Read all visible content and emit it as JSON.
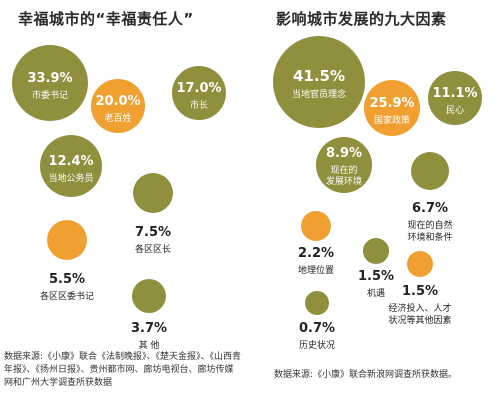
{
  "chart_data": [
    {
      "type": "bubble",
      "title": "幸福城市的“幸福责任人”",
      "items": [
        {
          "label": "市委书记",
          "value": 33.9,
          "pct": "33.9%",
          "color": "#8f8f3d"
        },
        {
          "label": "老百姓",
          "value": 20.0,
          "pct": "20.0%",
          "color": "#f0a031"
        },
        {
          "label": "市长",
          "value": 17.0,
          "pct": "17.0%",
          "color": "#8f8f3d"
        },
        {
          "label": "当地公务员",
          "value": 12.4,
          "pct": "12.4%",
          "color": "#8f8f3d"
        },
        {
          "label": "各区区长",
          "value": 7.5,
          "pct": "7.5%",
          "color": "#8f8f3d"
        },
        {
          "label": "各区区委书记",
          "value": 5.5,
          "pct": "5.5%",
          "color": "#f0a031"
        },
        {
          "label": "其  他",
          "value": 3.7,
          "pct": "3.7%",
          "color": "#8f8f3d"
        }
      ],
      "source": "数据来源:《小康》联合《法制晚报》、《楚天金报》、《山西青年报》、《扬州日报》、贵州都市网、廊坊电视台、廊坊传媒网和广州大学调查所获数据"
    },
    {
      "type": "bubble",
      "title": "影响城市发展的九大因素",
      "items": [
        {
          "label": "当地官员理念",
          "value": 41.5,
          "pct": "41.5%",
          "color": "#8f8f3d"
        },
        {
          "label": "国家政策",
          "value": 25.9,
          "pct": "25.9%",
          "color": "#f0a031"
        },
        {
          "label": "民心",
          "value": 11.1,
          "pct": "11.1%",
          "color": "#8f8f3d"
        },
        {
          "label": "现在的发展环境",
          "value": 8.9,
          "pct": "8.9%",
          "color": "#8f8f3d"
        },
        {
          "label": "现在的自然环境和条件",
          "value": 6.7,
          "pct": "6.7%",
          "color": "#8f8f3d"
        },
        {
          "label": "地理位置",
          "value": 2.2,
          "pct": "2.2%",
          "color": "#f0a031"
        },
        {
          "label": "机遇",
          "value": 1.5,
          "pct": "1.5%",
          "color": "#8f8f3d"
        },
        {
          "label": "经济投入、人才状况等其他因素",
          "value": 1.5,
          "pct": "1.5%",
          "color": "#f0a031"
        },
        {
          "label": "历史状况",
          "value": 0.7,
          "pct": "0.7%",
          "color": "#8f8f3d"
        }
      ],
      "source": "数据来源:《小康》联合新浪网调查所获数据。"
    }
  ]
}
